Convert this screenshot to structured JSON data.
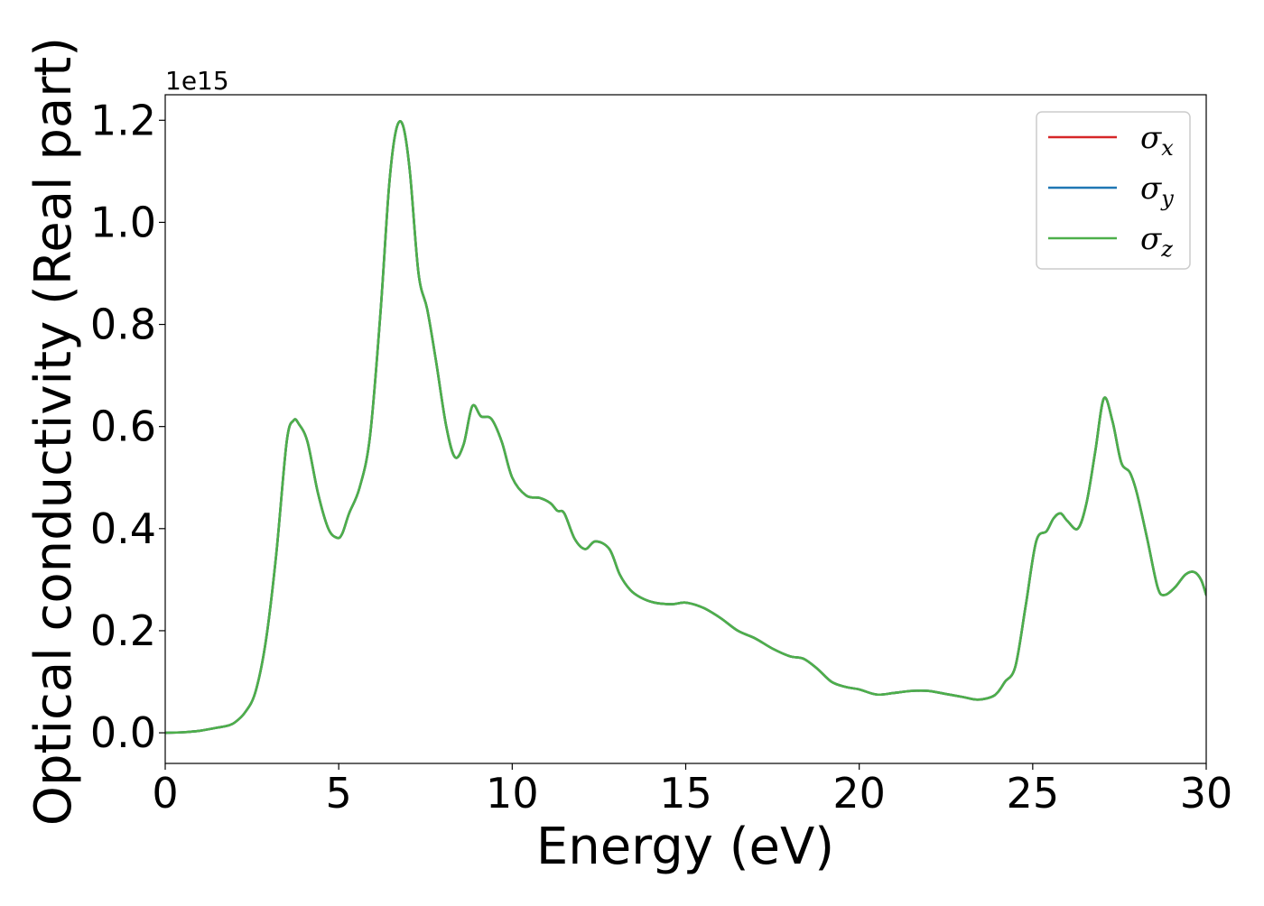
{
  "chart_data": {
    "type": "line",
    "xlabel": "Energy (eV)",
    "ylabel": "Optical conductivity (Real part)",
    "y_offset_label": "1e15",
    "xlim": [
      0,
      30
    ],
    "ylim": [
      -0.06,
      1.25
    ],
    "xticks": [
      0,
      5,
      10,
      15,
      20,
      25,
      30
    ],
    "xtick_labels": [
      "0",
      "5",
      "10",
      "15",
      "20",
      "25",
      "30"
    ],
    "yticks": [
      0.0,
      0.2,
      0.4,
      0.6,
      0.8,
      1.0,
      1.2
    ],
    "ytick_labels": [
      "0.0",
      "0.2",
      "0.4",
      "0.6",
      "0.8",
      "1.0",
      "1.2"
    ],
    "grid": false,
    "legend_position": "top-right",
    "series": [
      {
        "name": "σx",
        "legend_base": "σ",
        "legend_sub": "x",
        "color": "#d62728",
        "x": [
          0,
          0.5,
          1,
          1.5,
          1.8,
          2.0,
          2.3,
          2.6,
          2.9,
          3.2,
          3.5,
          3.7,
          3.85,
          4.1,
          4.4,
          4.7,
          4.95,
          5.1,
          5.3,
          5.6,
          5.9,
          6.2,
          6.45,
          6.65,
          6.85,
          7.05,
          7.3,
          7.55,
          7.8,
          8.1,
          8.35,
          8.6,
          8.85,
          9.1,
          9.4,
          9.7,
          10.0,
          10.4,
          10.8,
          11.1,
          11.3,
          11.5,
          11.8,
          12.1,
          12.4,
          12.8,
          13.1,
          13.4,
          13.7,
          14.1,
          14.6,
          15.0,
          15.5,
          16.0,
          16.5,
          17.0,
          17.5,
          18.0,
          18.4,
          18.8,
          19.2,
          19.6,
          20.0,
          20.5,
          21.0,
          21.5,
          22.0,
          22.5,
          23.0,
          23.4,
          23.8,
          24.0,
          24.2,
          24.5,
          24.8,
          25.1,
          25.4,
          25.6,
          25.8,
          26.0,
          26.3,
          26.55,
          26.8,
          27.05,
          27.3,
          27.55,
          27.8,
          28.0,
          28.3,
          28.6,
          28.8,
          29.1,
          29.4,
          29.65,
          29.85,
          30.0
        ],
        "y": [
          0.0,
          0.001,
          0.004,
          0.01,
          0.014,
          0.02,
          0.04,
          0.08,
          0.18,
          0.35,
          0.57,
          0.612,
          0.605,
          0.57,
          0.47,
          0.4,
          0.382,
          0.39,
          0.43,
          0.48,
          0.58,
          0.82,
          1.07,
          1.18,
          1.19,
          1.1,
          0.9,
          0.83,
          0.73,
          0.6,
          0.54,
          0.565,
          0.64,
          0.62,
          0.615,
          0.57,
          0.5,
          0.465,
          0.46,
          0.45,
          0.435,
          0.43,
          0.38,
          0.36,
          0.375,
          0.36,
          0.31,
          0.28,
          0.265,
          0.255,
          0.252,
          0.255,
          0.245,
          0.225,
          0.2,
          0.185,
          0.165,
          0.15,
          0.145,
          0.125,
          0.1,
          0.09,
          0.085,
          0.075,
          0.078,
          0.082,
          0.082,
          0.076,
          0.07,
          0.065,
          0.07,
          0.08,
          0.1,
          0.13,
          0.25,
          0.375,
          0.395,
          0.42,
          0.43,
          0.415,
          0.4,
          0.45,
          0.55,
          0.655,
          0.61,
          0.53,
          0.51,
          0.47,
          0.38,
          0.285,
          0.27,
          0.285,
          0.31,
          0.315,
          0.3,
          0.27
        ]
      },
      {
        "name": "σy",
        "legend_base": "σ",
        "legend_sub": "y",
        "color": "#1f77b4",
        "x": [
          0,
          0.5,
          1,
          1.5,
          1.8,
          2.0,
          2.3,
          2.6,
          2.9,
          3.2,
          3.5,
          3.7,
          3.85,
          4.1,
          4.4,
          4.7,
          4.95,
          5.1,
          5.3,
          5.6,
          5.9,
          6.2,
          6.45,
          6.65,
          6.85,
          7.05,
          7.3,
          7.55,
          7.8,
          8.1,
          8.35,
          8.6,
          8.85,
          9.1,
          9.4,
          9.7,
          10.0,
          10.4,
          10.8,
          11.1,
          11.3,
          11.5,
          11.8,
          12.1,
          12.4,
          12.8,
          13.1,
          13.4,
          13.7,
          14.1,
          14.6,
          15.0,
          15.5,
          16.0,
          16.5,
          17.0,
          17.5,
          18.0,
          18.4,
          18.8,
          19.2,
          19.6,
          20.0,
          20.5,
          21.0,
          21.5,
          22.0,
          22.5,
          23.0,
          23.4,
          23.8,
          24.0,
          24.2,
          24.5,
          24.8,
          25.1,
          25.4,
          25.6,
          25.8,
          26.0,
          26.3,
          26.55,
          26.8,
          27.05,
          27.3,
          27.55,
          27.8,
          28.0,
          28.3,
          28.6,
          28.8,
          29.1,
          29.4,
          29.65,
          29.85,
          30.0
        ],
        "y": [
          0.0,
          0.001,
          0.004,
          0.01,
          0.014,
          0.02,
          0.04,
          0.08,
          0.18,
          0.35,
          0.57,
          0.612,
          0.605,
          0.57,
          0.47,
          0.4,
          0.382,
          0.39,
          0.43,
          0.48,
          0.58,
          0.82,
          1.07,
          1.18,
          1.19,
          1.1,
          0.9,
          0.83,
          0.73,
          0.6,
          0.54,
          0.565,
          0.64,
          0.62,
          0.615,
          0.57,
          0.5,
          0.465,
          0.46,
          0.45,
          0.435,
          0.43,
          0.38,
          0.36,
          0.375,
          0.36,
          0.31,
          0.28,
          0.265,
          0.255,
          0.252,
          0.255,
          0.245,
          0.225,
          0.2,
          0.185,
          0.165,
          0.15,
          0.145,
          0.125,
          0.1,
          0.09,
          0.085,
          0.075,
          0.078,
          0.082,
          0.082,
          0.076,
          0.07,
          0.065,
          0.07,
          0.08,
          0.1,
          0.13,
          0.25,
          0.375,
          0.395,
          0.42,
          0.43,
          0.415,
          0.4,
          0.45,
          0.55,
          0.655,
          0.61,
          0.53,
          0.51,
          0.47,
          0.38,
          0.285,
          0.27,
          0.285,
          0.31,
          0.315,
          0.3,
          0.27
        ]
      },
      {
        "name": "σz",
        "legend_base": "σ",
        "legend_sub": "z",
        "color": "#4daf4a",
        "x": [
          0,
          0.5,
          1,
          1.5,
          1.8,
          2.0,
          2.3,
          2.6,
          2.9,
          3.2,
          3.5,
          3.7,
          3.85,
          4.1,
          4.4,
          4.7,
          4.95,
          5.1,
          5.3,
          5.6,
          5.9,
          6.2,
          6.45,
          6.65,
          6.85,
          7.05,
          7.3,
          7.55,
          7.8,
          8.1,
          8.35,
          8.6,
          8.85,
          9.1,
          9.4,
          9.7,
          10.0,
          10.4,
          10.8,
          11.1,
          11.3,
          11.5,
          11.8,
          12.1,
          12.4,
          12.8,
          13.1,
          13.4,
          13.7,
          14.1,
          14.6,
          15.0,
          15.5,
          16.0,
          16.5,
          17.0,
          17.5,
          18.0,
          18.4,
          18.8,
          19.2,
          19.6,
          20.0,
          20.5,
          21.0,
          21.5,
          22.0,
          22.5,
          23.0,
          23.4,
          23.8,
          24.0,
          24.2,
          24.5,
          24.8,
          25.1,
          25.4,
          25.6,
          25.8,
          26.0,
          26.3,
          26.55,
          26.8,
          27.05,
          27.3,
          27.55,
          27.8,
          28.0,
          28.3,
          28.6,
          28.8,
          29.1,
          29.4,
          29.65,
          29.85,
          30.0
        ],
        "y": [
          0.0,
          0.001,
          0.004,
          0.01,
          0.014,
          0.02,
          0.04,
          0.08,
          0.18,
          0.35,
          0.57,
          0.612,
          0.605,
          0.57,
          0.47,
          0.4,
          0.382,
          0.39,
          0.43,
          0.48,
          0.58,
          0.82,
          1.07,
          1.18,
          1.19,
          1.1,
          0.9,
          0.83,
          0.73,
          0.6,
          0.54,
          0.565,
          0.64,
          0.62,
          0.615,
          0.57,
          0.5,
          0.465,
          0.46,
          0.45,
          0.435,
          0.43,
          0.38,
          0.36,
          0.375,
          0.36,
          0.31,
          0.28,
          0.265,
          0.255,
          0.252,
          0.255,
          0.245,
          0.225,
          0.2,
          0.185,
          0.165,
          0.15,
          0.145,
          0.125,
          0.1,
          0.09,
          0.085,
          0.075,
          0.078,
          0.082,
          0.082,
          0.076,
          0.07,
          0.065,
          0.07,
          0.08,
          0.1,
          0.13,
          0.25,
          0.375,
          0.395,
          0.42,
          0.43,
          0.415,
          0.4,
          0.45,
          0.55,
          0.655,
          0.61,
          0.53,
          0.51,
          0.47,
          0.38,
          0.285,
          0.27,
          0.285,
          0.31,
          0.315,
          0.3,
          0.27
        ]
      }
    ]
  }
}
